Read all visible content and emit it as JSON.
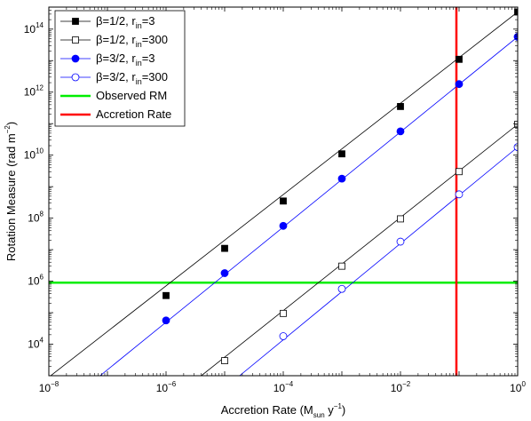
{
  "chart_data": {
    "type": "line",
    "x_scale": "log",
    "y_scale": "log",
    "xlim": [
      1e-08,
      1
    ],
    "ylim": [
      1000.0,
      500000000000000.0
    ],
    "xlabel": {
      "main": "Accretion Rate (M",
      "sub": "sun",
      "tail": " y",
      "sup": "−1",
      "end": ")"
    },
    "ylabel": {
      "main": "Rotation Measure (rad m",
      "sup": "−2",
      "end": ")"
    },
    "x_ticks": [
      {
        "value": 1e-08,
        "base": "10",
        "exp": "−8"
      },
      {
        "value": 1e-06,
        "base": "10",
        "exp": "−6"
      },
      {
        "value": 0.0001,
        "base": "10",
        "exp": "−4"
      },
      {
        "value": 0.01,
        "base": "10",
        "exp": "−2"
      },
      {
        "value": 1,
        "base": "10",
        "exp": "0"
      }
    ],
    "y_ticks": [
      {
        "value": 10000.0,
        "base": "10",
        "exp": "4"
      },
      {
        "value": 1000000.0,
        "base": "10",
        "exp": "6"
      },
      {
        "value": 100000000.0,
        "base": "10",
        "exp": "8"
      },
      {
        "value": 10000000000.0,
        "base": "10",
        "exp": "10"
      },
      {
        "value": 1000000000000.0,
        "base": "10",
        "exp": "12"
      },
      {
        "value": 100000000000000.0,
        "base": "10",
        "exp": "14"
      }
    ],
    "series": [
      {
        "name": "β=1/2, r_in=3",
        "legend": {
          "main": "β=1/2, r",
          "sub": "in",
          "tail": "=3"
        },
        "color": "#000000",
        "marker": "square-filled",
        "line_x": [
          1e-08,
          1
        ],
        "line_y": [
          900.0,
          350000000000000.0
        ],
        "x": [
          1e-06,
          1e-05,
          0.0001,
          0.001,
          0.01,
          0.1,
          1
        ],
        "y": [
          350000.0,
          11000000.0,
          350000000.0,
          11000000000.0,
          350000000000.0,
          11000000000000.0,
          350000000000000.0
        ]
      },
      {
        "name": "β=1/2, r_in=300",
        "legend": {
          "main": "β=1/2, r",
          "sub": "in",
          "tail": "=300"
        },
        "color": "#000000",
        "marker": "square-open",
        "line_x": [
          4e-06,
          1
        ],
        "line_y": [
          1000.0,
          95000000000.0
        ],
        "x": [
          1e-05,
          0.0001,
          0.001,
          0.01,
          0.1,
          1
        ],
        "y": [
          3000.0,
          95000.0,
          3000000.0,
          95000000.0,
          3000000000.0,
          95000000000.0
        ]
      },
      {
        "name": "β=3/2, r_in=3",
        "legend": {
          "main": "β=3/2, r",
          "sub": "in",
          "tail": "=3"
        },
        "color": "#0000ff",
        "marker": "circle-filled",
        "line_x": [
          7.5e-08,
          1
        ],
        "line_y": [
          1000.0,
          57000000000000.0
        ],
        "x": [
          1e-06,
          1e-05,
          0.0001,
          0.001,
          0.01,
          0.1,
          1
        ],
        "y": [
          57000.0,
          1800000.0,
          57000000.0,
          1800000000.0,
          57000000000.0,
          1800000000000.0,
          57000000000000.0
        ]
      },
      {
        "name": "β=3/2, r_in=300",
        "legend": {
          "main": "β=3/2, r",
          "sub": "in",
          "tail": "=300"
        },
        "color": "#0000ff",
        "marker": "circle-open",
        "line_x": [
          1.8e-05,
          1
        ],
        "line_y": [
          1000.0,
          18000000000.0
        ],
        "x": [
          0.0001,
          0.001,
          0.01,
          0.1,
          1
        ],
        "y": [
          18000.0,
          570000.0,
          18000000.0,
          570000000.0,
          18000000000.0
        ]
      }
    ],
    "reference_lines": [
      {
        "name": "Observed RM",
        "orientation": "horizontal",
        "value": 900000.0,
        "color": "#00ee00"
      },
      {
        "name": "Accretion Rate",
        "orientation": "vertical",
        "value": 0.09,
        "color": "#ff0000"
      }
    ],
    "legend": {
      "placement": "top-left",
      "box": true
    },
    "grid": false
  }
}
